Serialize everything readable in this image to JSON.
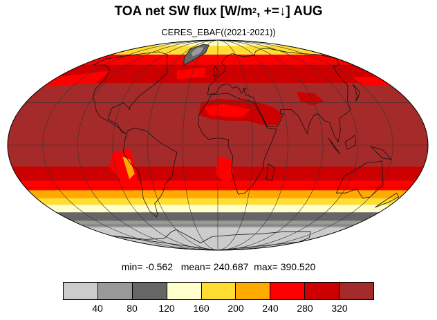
{
  "title": {
    "main": "TOA net SW flux [W/m",
    "sup": "2",
    "rest": ", +=↓]  AUG"
  },
  "subtitle": "CERES_EBAF((2021-2021))",
  "stats": {
    "min_label": "min=",
    "min": "-0.562",
    "mean_label": "mean=",
    "mean": "240.687",
    "max_label": "max=",
    "max": "390.520"
  },
  "colorbar": {
    "colors": [
      "#cccccc",
      "#999999",
      "#666666",
      "#ffffcc",
      "#ffdd33",
      "#ffaa00",
      "#ff0000",
      "#cc0000",
      "#a52a2a"
    ],
    "ticks": [
      "40",
      "80",
      "120",
      "160",
      "200",
      "240",
      "280",
      "320"
    ]
  },
  "map": {
    "projection": "Mollweide",
    "central_longitude": 0,
    "zonal_bands": [
      {
        "lat_from": 90,
        "lat_to": 80,
        "color_index": 3
      },
      {
        "lat_from": 80,
        "lat_to": 70,
        "color_index": 4
      },
      {
        "lat_from": 70,
        "lat_to": 60,
        "color_index": 6
      },
      {
        "lat_from": 60,
        "lat_to": 45,
        "color_index": 7
      },
      {
        "lat_from": 45,
        "lat_to": -15,
        "color_index": 8
      },
      {
        "lat_from": -15,
        "lat_to": -25,
        "color_index": 7
      },
      {
        "lat_from": -25,
        "lat_to": -32,
        "color_index": 6
      },
      {
        "lat_from": -32,
        "lat_to": -38,
        "color_index": 5
      },
      {
        "lat_from": -38,
        "lat_to": -43,
        "color_index": 4
      },
      {
        "lat_from": -43,
        "lat_to": -49,
        "color_index": 3
      },
      {
        "lat_from": -49,
        "lat_to": -56,
        "color_index": 2
      },
      {
        "lat_from": -56,
        "lat_to": -62,
        "color_index": 1
      },
      {
        "lat_from": -62,
        "lat_to": -90,
        "color_index": 0
      }
    ],
    "greenland_color_index": 2
  }
}
